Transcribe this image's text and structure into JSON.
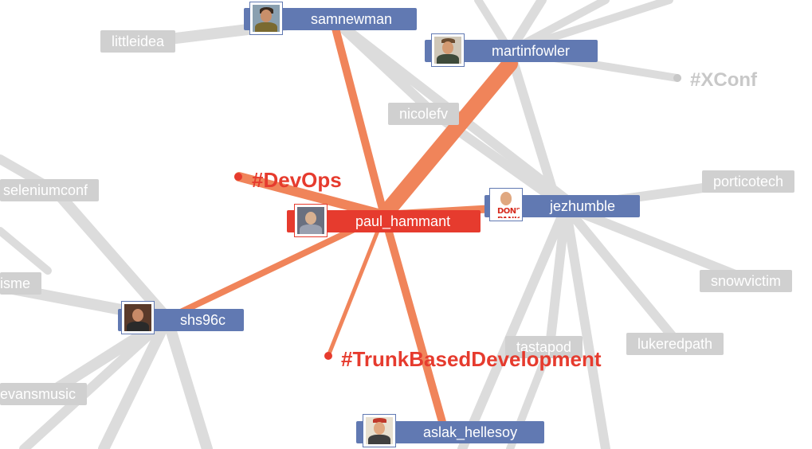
{
  "colors": {
    "edge_gray": "#dcdcdc",
    "edge_orange": "#f0845a",
    "label_gray": "#d0d0d0",
    "label_blue": "#6179b2",
    "label_red": "#e63b2e",
    "hashtag_red": "#e63b2e",
    "hashtag_gray": "#c8c8c8"
  },
  "nodes": {
    "samnewman": "samnewman",
    "martinfowler": "martinfowler",
    "littleidea": "littleidea",
    "xconf": "#XConf",
    "nicolefv": "nicolefv",
    "devops": "#DevOps",
    "seleniumconf": "seleniumconf",
    "porticotech": "porticotech",
    "paul_hammant": "paul_hammant",
    "jezhumble": "jezhumble",
    "isme": "isme",
    "snowvictim": "snowvictim",
    "shs96c": "shs96c",
    "tastapod": "tastapod",
    "lukeredpath": "lukeredpath",
    "trunk": "#TrunkBasedDevelopment",
    "evansmusic": "evansmusic",
    "aslak_hellesoy": "aslak_hellesoy"
  },
  "avatar_text": {
    "jezhumble": "DON'T PANIC"
  }
}
